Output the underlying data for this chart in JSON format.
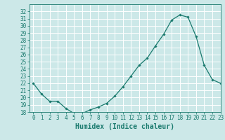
{
  "x": [
    0,
    1,
    2,
    3,
    4,
    5,
    6,
    7,
    8,
    9,
    10,
    11,
    12,
    13,
    14,
    15,
    16,
    17,
    18,
    19,
    20,
    21,
    22,
    23
  ],
  "y": [
    22,
    20.5,
    19.5,
    19.5,
    18.5,
    17.8,
    17.8,
    18.3,
    18.7,
    19.2,
    20.2,
    21.5,
    23.0,
    24.5,
    25.5,
    27.2,
    28.8,
    30.8,
    31.5,
    31.2,
    28.5,
    24.5,
    22.5,
    22
  ],
  "xlabel": "Humidex (Indice chaleur)",
  "ylim": [
    18,
    33
  ],
  "xlim": [
    -0.5,
    23
  ],
  "yticks": [
    18,
    19,
    20,
    21,
    22,
    23,
    24,
    25,
    26,
    27,
    28,
    29,
    30,
    31,
    32
  ],
  "xticks": [
    0,
    1,
    2,
    3,
    4,
    5,
    6,
    7,
    8,
    9,
    10,
    11,
    12,
    13,
    14,
    15,
    16,
    17,
    18,
    19,
    20,
    21,
    22,
    23
  ],
  "line_color": "#1a7a6e",
  "marker": "D",
  "marker_size": 1.8,
  "bg_color": "#cce8e8",
  "grid_color": "#ffffff",
  "tick_color": "#1a7a6e",
  "label_color": "#1a7a6e",
  "xlabel_fontsize": 7,
  "tick_fontsize": 5.5
}
